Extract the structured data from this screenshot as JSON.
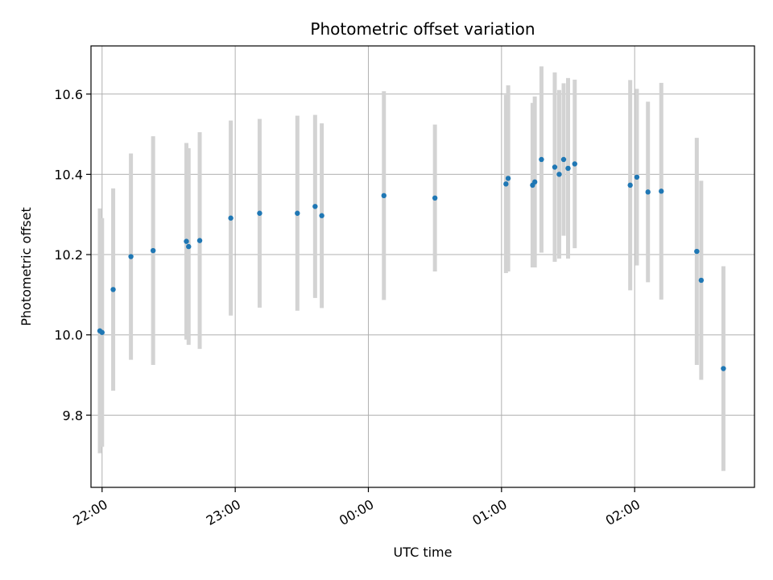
{
  "chart_data": {
    "type": "scatter",
    "title": "Photometric offset variation",
    "xlabel": "UTC time",
    "ylabel": "Photometric offset",
    "grid": true,
    "xlim": [
      "21:55",
      "02:54"
    ],
    "ylim": [
      9.62,
      10.72
    ],
    "x_ticks": [
      "22:00",
      "23:00",
      "00:00",
      "01:00",
      "02:00"
    ],
    "y_ticks": [
      9.8,
      10.0,
      10.2,
      10.4,
      10.6
    ],
    "y_tick_labels": [
      "9.8",
      "10.0",
      "10.2",
      "10.4",
      "10.6"
    ],
    "marker_color": "#1f77b4",
    "errorbar_color": "#d3d3d3",
    "points": [
      {
        "time": "21:59",
        "y": 10.01,
        "err": 0.305
      },
      {
        "time": "22:00",
        "y": 10.006,
        "err": 0.285
      },
      {
        "time": "22:05",
        "y": 10.113,
        "err": 0.252
      },
      {
        "time": "22:13",
        "y": 10.195,
        "err": 0.257
      },
      {
        "time": "22:23",
        "y": 10.21,
        "err": 0.285
      },
      {
        "time": "22:38",
        "y": 10.233,
        "err": 0.245
      },
      {
        "time": "22:39",
        "y": 10.22,
        "err": 0.245
      },
      {
        "time": "22:44",
        "y": 10.235,
        "err": 0.27
      },
      {
        "time": "22:58",
        "y": 10.291,
        "err": 0.243
      },
      {
        "time": "23:11",
        "y": 10.303,
        "err": 0.235
      },
      {
        "time": "23:28",
        "y": 10.303,
        "err": 0.243
      },
      {
        "time": "23:36",
        "y": 10.32,
        "err": 0.228
      },
      {
        "time": "23:39",
        "y": 10.297,
        "err": 0.23
      },
      {
        "time": "00:07",
        "y": 10.347,
        "err": 0.26
      },
      {
        "time": "00:30",
        "y": 10.341,
        "err": 0.183
      },
      {
        "time": "01:02",
        "y": 10.376,
        "err": 0.222
      },
      {
        "time": "01:03",
        "y": 10.39,
        "err": 0.232
      },
      {
        "time": "01:14",
        "y": 10.373,
        "err": 0.205
      },
      {
        "time": "01:15",
        "y": 10.381,
        "err": 0.213
      },
      {
        "time": "01:18",
        "y": 10.437,
        "err": 0.232
      },
      {
        "time": "01:24",
        "y": 10.418,
        "err": 0.236
      },
      {
        "time": "01:26",
        "y": 10.4,
        "err": 0.21
      },
      {
        "time": "01:28",
        "y": 10.437,
        "err": 0.19
      },
      {
        "time": "01:30",
        "y": 10.415,
        "err": 0.225
      },
      {
        "time": "01:33",
        "y": 10.426,
        "err": 0.21
      },
      {
        "time": "01:58",
        "y": 10.373,
        "err": 0.262
      },
      {
        "time": "02:01",
        "y": 10.393,
        "err": 0.22
      },
      {
        "time": "02:06",
        "y": 10.356,
        "err": 0.225
      },
      {
        "time": "02:12",
        "y": 10.358,
        "err": 0.27
      },
      {
        "time": "02:28",
        "y": 10.208,
        "err": 0.283
      },
      {
        "time": "02:30",
        "y": 10.136,
        "err": 0.248
      },
      {
        "time": "02:40",
        "y": 9.916,
        "err": 0.255
      }
    ]
  }
}
